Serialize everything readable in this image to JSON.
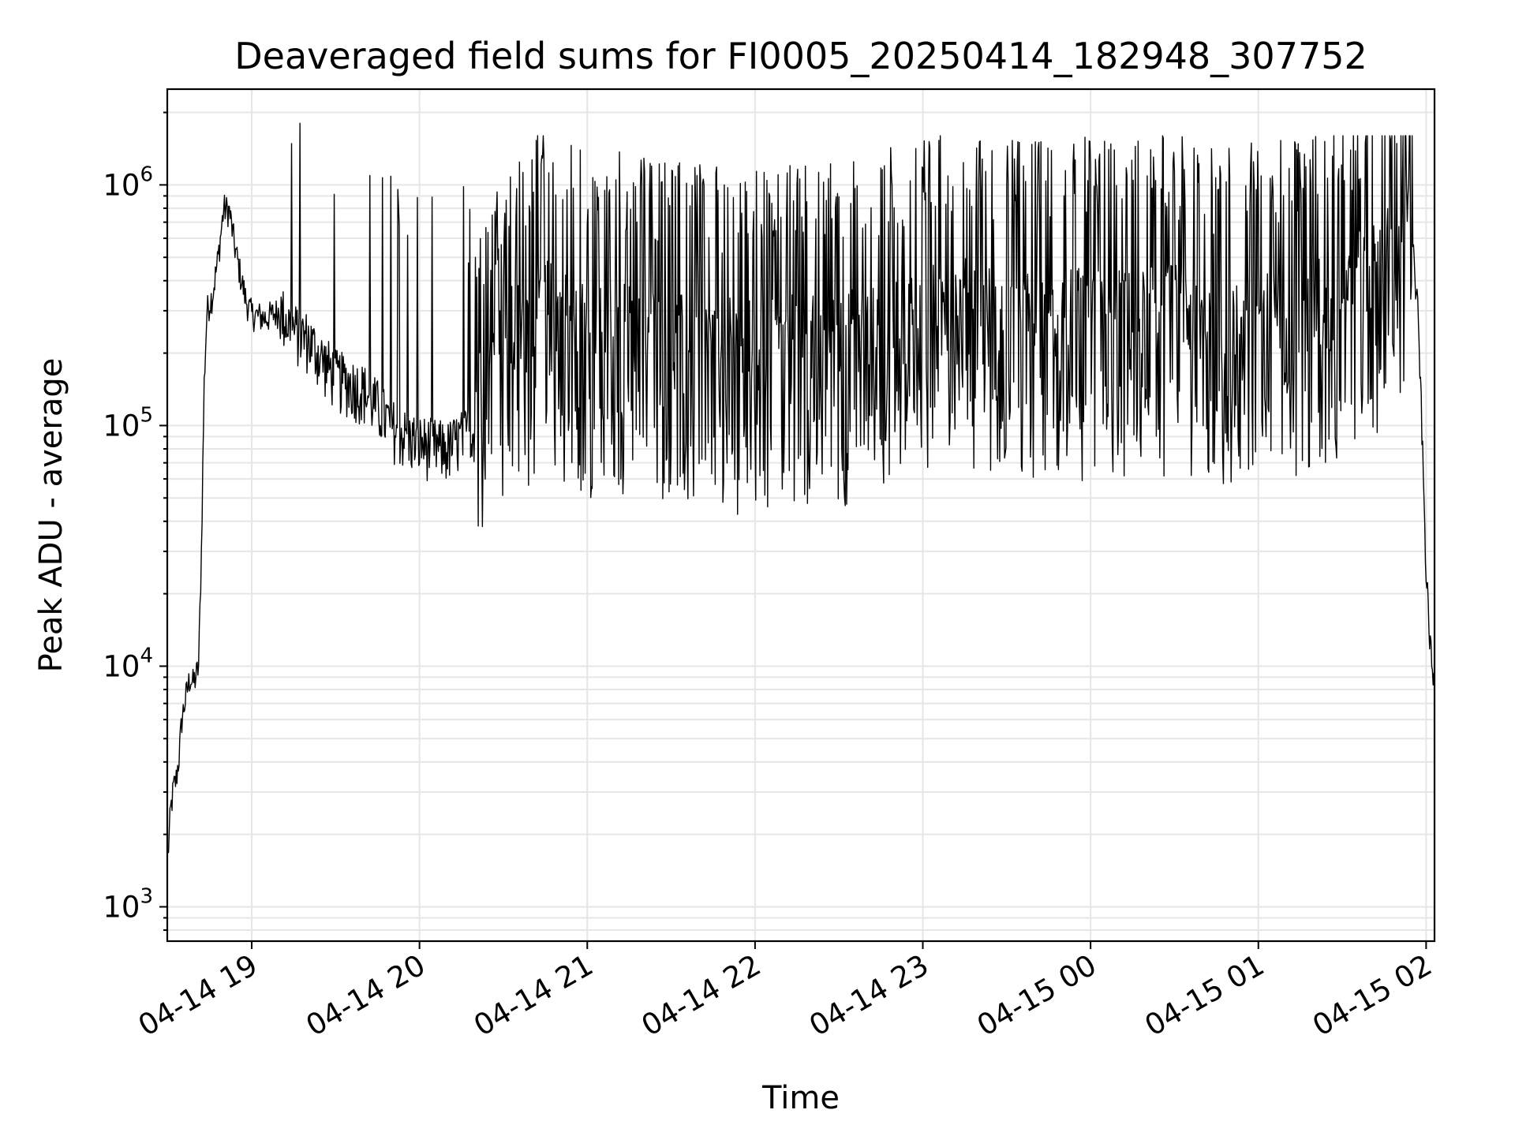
{
  "chart_data": {
    "type": "line",
    "title": "Deaveraged field sums for FI0005_20250414_182948_307752",
    "xlabel": "Time",
    "ylabel": "Peak ADU - average",
    "yscale": "log",
    "grid": true,
    "x_ticks": [
      "04-14 19",
      "04-14 20",
      "04-14 21",
      "04-14 22",
      "04-14 23",
      "04-15 00",
      "04-15 01",
      "04-15 02"
    ],
    "y_ticks": [
      {
        "base": "10",
        "exp": "3",
        "value": 1000
      },
      {
        "base": "10",
        "exp": "4",
        "value": 10000
      },
      {
        "base": "10",
        "exp": "5",
        "value": 100000
      },
      {
        "base": "10",
        "exp": "6",
        "value": 1000000
      }
    ],
    "xlim": [
      "2025-04-14 18:29:48",
      "2025-04-15 02:03:00"
    ],
    "ylim": [
      720,
      2500000
    ],
    "series_color": "#000000",
    "series": [
      {
        "values": [
          [
            "2025-04-14 18:30",
            1600
          ],
          [
            "2025-04-14 18:31",
            2500
          ],
          [
            "2025-04-14 18:32",
            3100
          ],
          [
            "2025-04-14 18:33",
            3400
          ],
          [
            "2025-04-14 18:34",
            4200
          ],
          [
            "2025-04-14 18:35",
            6000
          ],
          [
            "2025-04-14 18:36",
            7000
          ],
          [
            "2025-04-14 18:37",
            8000
          ],
          [
            "2025-04-14 18:38",
            9000
          ],
          [
            "2025-04-14 18:39",
            8500
          ],
          [
            "2025-04-14 18:40",
            9000
          ],
          [
            "2025-04-14 18:41",
            10000
          ],
          [
            "2025-04-14 18:42",
            30000
          ],
          [
            "2025-04-14 18:43",
            150000
          ],
          [
            "2025-04-14 18:44",
            300000
          ],
          [
            "2025-04-14 18:46",
            350000
          ],
          [
            "2025-04-14 18:48",
            500000
          ],
          [
            "2025-04-14 18:50",
            800000
          ],
          [
            "2025-04-14 18:52",
            780000
          ],
          [
            "2025-04-14 18:54",
            550000
          ],
          [
            "2025-04-14 18:56",
            420000
          ],
          [
            "2025-04-14 18:58",
            330000
          ],
          [
            "2025-04-14 19:00",
            290000
          ],
          [
            "2025-04-14 19:05",
            280000
          ],
          [
            "2025-04-14 19:10",
            300000
          ],
          [
            "2025-04-14 19:15",
            250000
          ],
          [
            "2025-04-14 19:20",
            230000
          ],
          [
            "2025-04-14 19:25",
            190000
          ],
          [
            "2025-04-14 19:30",
            160000
          ],
          [
            "2025-04-14 19:35",
            150000
          ],
          [
            "2025-04-14 19:40",
            140000
          ],
          [
            "2025-04-14 19:45",
            120000
          ],
          [
            "2025-04-14 19:50",
            100000
          ],
          [
            "2025-04-14 19:55",
            90000
          ],
          [
            "2025-04-14 20:00",
            85000
          ],
          [
            "2025-04-14 20:10",
            80000
          ],
          [
            "2025-04-14 20:20",
            100000
          ],
          [
            "2025-04-14 20:30",
            180000
          ],
          [
            "2025-04-14 20:45",
            250000
          ],
          [
            "2025-04-14 21:00",
            200000
          ],
          [
            "2025-04-14 21:15",
            200000
          ],
          [
            "2025-04-14 21:30",
            180000
          ],
          [
            "2025-04-14 21:45",
            170000
          ],
          [
            "2025-04-14 22:00",
            170000
          ],
          [
            "2025-04-14 22:15",
            180000
          ],
          [
            "2025-04-14 22:30",
            180000
          ],
          [
            "2025-04-14 22:45",
            200000
          ],
          [
            "2025-04-14 23:00",
            230000
          ],
          [
            "2025-04-14 23:15",
            250000
          ],
          [
            "2025-04-14 23:30",
            220000
          ],
          [
            "2025-04-14 23:45",
            220000
          ],
          [
            "2025-04-15 00:00",
            230000
          ],
          [
            "2025-04-15 00:15",
            220000
          ],
          [
            "2025-04-15 00:30",
            240000
          ],
          [
            "2025-04-15 00:45",
            200000
          ],
          [
            "2025-04-15 01:00",
            220000
          ],
          [
            "2025-04-15 01:15",
            230000
          ],
          [
            "2025-04-15 01:30",
            280000
          ],
          [
            "2025-04-15 01:40",
            350000
          ],
          [
            "2025-04-15 01:50",
            450000
          ],
          [
            "2025-04-15 01:53",
            500000
          ],
          [
            "2025-04-15 01:55",
            700000
          ],
          [
            "2025-04-15 01:56",
            400000
          ],
          [
            "2025-04-15 01:57",
            300000
          ],
          [
            "2025-04-15 01:58",
            150000
          ],
          [
            "2025-04-15 01:59",
            60000
          ],
          [
            "2025-04-15 02:00",
            25000
          ],
          [
            "2025-04-15 02:01",
            15000
          ],
          [
            "2025-04-15 02:02",
            10000
          ],
          [
            "2025-04-15 02:03",
            8000
          ]
        ]
      }
    ]
  }
}
